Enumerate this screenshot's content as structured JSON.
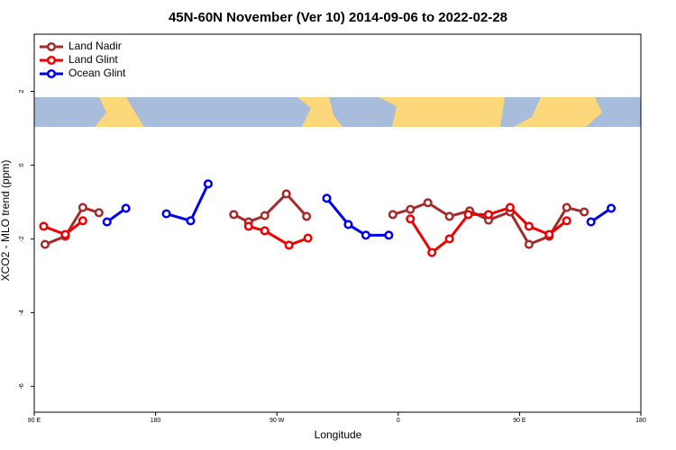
{
  "chart_data": {
    "type": "line",
    "title": "45N-60N November (Ver 10)   2014-09-06 to 2022-02-28",
    "x_label": "Longitude",
    "y_label": "XCO2 - MLO trend (ppm)",
    "xlim": [
      90,
      540
    ],
    "ylim": [
      -6.7,
      3.55
    ],
    "xticks": [
      {
        "value": 90,
        "label": "90 E"
      },
      180,
      {
        "value": 270,
        "label": "90 W"
      },
      {
        "value": 360,
        "label": "0"
      },
      {
        "value": 450,
        "label": "90 E"
      },
      {
        "value": 540,
        "label": "180"
      }
    ],
    "yticks": [
      -6,
      -4,
      -2,
      0,
      2
    ],
    "legend": "top-left",
    "series": [
      {
        "name": "Land Nadir",
        "color": "#a52a2a",
        "x": [
          98,
          113,
          126,
          138,
          null,
          238,
          249,
          261,
          277,
          292,
          null,
          356,
          369,
          382,
          398,
          413,
          427,
          443,
          457,
          472,
          485,
          498
        ],
        "values": [
          -2.15,
          -1.93,
          -1.15,
          -1.29,
          null,
          -1.34,
          -1.54,
          -1.37,
          -0.78,
          -1.39,
          null,
          -1.34,
          -1.2,
          -1.02,
          -1.39,
          -1.24,
          -1.49,
          -1.27,
          -2.15,
          -1.93,
          -1.15,
          -1.27
        ]
      },
      {
        "name": "Land Glint",
        "color": "#f00000",
        "x": [
          97,
          113,
          126,
          null,
          249,
          261,
          279,
          293,
          null,
          369,
          385,
          398,
          412,
          427,
          443,
          457,
          472,
          485
        ],
        "values": [
          -1.66,
          -1.88,
          -1.51,
          null,
          -1.66,
          -1.78,
          -2.17,
          -1.98,
          null,
          -1.46,
          -2.37,
          -2.0,
          -1.34,
          -1.34,
          -1.15,
          -1.66,
          -1.88,
          -1.51
        ]
      },
      {
        "name": "Ocean Glint",
        "color": "#0000f0",
        "x": [
          144,
          158,
          null,
          188,
          206,
          219,
          null,
          307,
          323,
          336,
          353,
          null,
          503,
          518
        ],
        "values": [
          -1.54,
          -1.17,
          null,
          -1.32,
          -1.51,
          -0.51,
          null,
          -0.9,
          -1.61,
          -1.9,
          -1.9,
          null,
          -1.54,
          -1.17
        ]
      }
    ]
  }
}
